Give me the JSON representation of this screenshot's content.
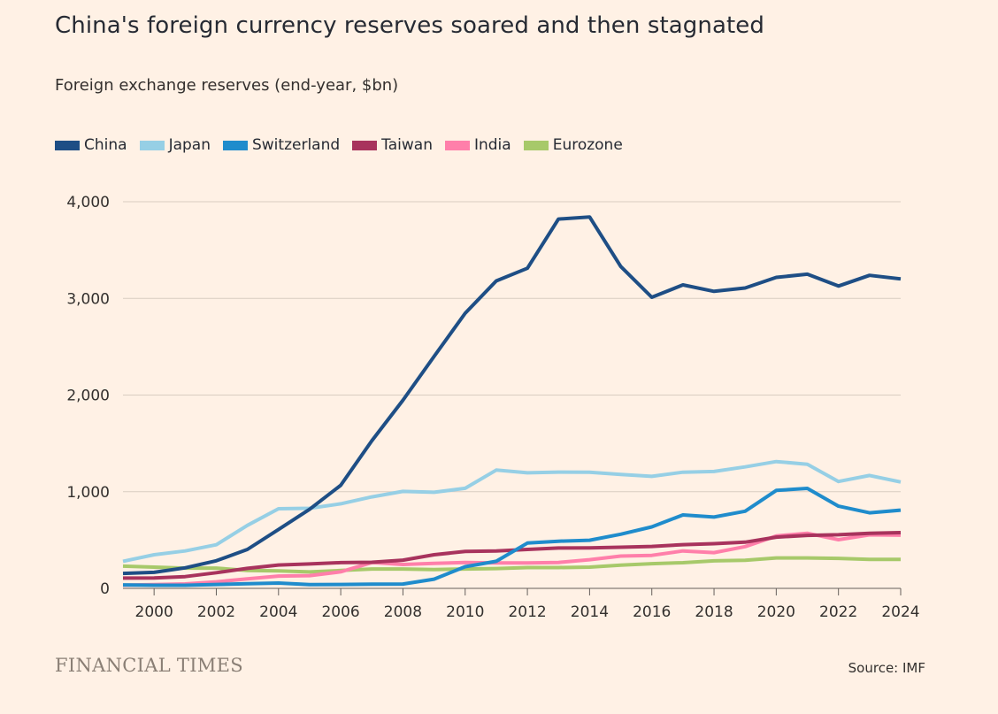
{
  "brand": "FINANCIAL TIMES",
  "source": "Source: IMF",
  "chart_data": {
    "type": "line",
    "title": "China's foreign currency reserves soared and then stagnated",
    "subtitle": "Foreign exchange reserves (end-year, $bn)",
    "xlabel": "",
    "ylabel": "",
    "xlim": [
      1999,
      2024
    ],
    "ylim": [
      0,
      4000
    ],
    "yticks": [
      0,
      1000,
      2000,
      3000,
      4000
    ],
    "ytick_labels": [
      "0",
      "1,000",
      "2,000",
      "3,000",
      "4,000"
    ],
    "xticks": [
      2000,
      2002,
      2004,
      2006,
      2008,
      2010,
      2012,
      2014,
      2016,
      2018,
      2020,
      2022,
      2024
    ],
    "xtick_labels": [
      "2000",
      "2002",
      "2004",
      "2006",
      "2008",
      "2010",
      "2012",
      "2014",
      "2016",
      "2018",
      "2020",
      "2022",
      "2024"
    ],
    "grid": true,
    "legend_position": "top-left",
    "x": [
      1999,
      2000,
      2001,
      2002,
      2003,
      2004,
      2005,
      2006,
      2007,
      2008,
      2009,
      2010,
      2011,
      2012,
      2013,
      2014,
      2015,
      2016,
      2017,
      2018,
      2019,
      2020,
      2021,
      2022,
      2023,
      2024
    ],
    "series": [
      {
        "name": "Eurozone",
        "color": "#A7C96A",
        "values": [
          230,
          220,
          210,
          210,
          185,
          180,
          170,
          185,
          200,
          200,
          195,
          200,
          205,
          215,
          215,
          220,
          240,
          255,
          265,
          285,
          290,
          315,
          315,
          310,
          300,
          300
        ]
      },
      {
        "name": "India",
        "color": "#FF7FAA",
        "values": [
          33,
          38,
          46,
          68,
          99,
          127,
          132,
          171,
          267,
          247,
          258,
          268,
          263,
          264,
          268,
          297,
          334,
          341,
          387,
          370,
          432,
          542,
          570,
          503,
          554,
          550
        ]
      },
      {
        "name": "Taiwan",
        "color": "#A8335D",
        "values": [
          106,
          107,
          122,
          162,
          207,
          242,
          253,
          266,
          270,
          292,
          348,
          382,
          386,
          403,
          417,
          419,
          426,
          434,
          452,
          462,
          478,
          530,
          548,
          555,
          570,
          577
        ]
      },
      {
        "name": "Switzerland",
        "color": "#1F8CCC",
        "values": [
          36,
          32,
          32,
          40,
          48,
          55,
          38,
          40,
          44,
          45,
          95,
          224,
          280,
          469,
          488,
          498,
          560,
          636,
          760,
          738,
          798,
          1013,
          1034,
          850,
          782,
          809
        ]
      },
      {
        "name": "Japan",
        "color": "#96CFE5",
        "values": [
          280,
          348,
          387,
          451,
          652,
          824,
          828,
          875,
          946,
          1003,
          994,
          1035,
          1224,
          1195,
          1203,
          1202,
          1179,
          1159,
          1202,
          1209,
          1257,
          1312,
          1284,
          1106,
          1168,
          1100
        ]
      },
      {
        "name": "China",
        "color": "#1E4E85",
        "values": [
          155,
          166,
          212,
          286,
          403,
          610,
          818,
          1066,
          1528,
          1946,
          2399,
          2847,
          3181,
          3312,
          3821,
          3843,
          3330,
          3011,
          3140,
          3073,
          3108,
          3217,
          3250,
          3128,
          3238,
          3202
        ]
      }
    ],
    "legend_order": [
      "China",
      "Japan",
      "Switzerland",
      "Taiwan",
      "India",
      "Eurozone"
    ]
  }
}
